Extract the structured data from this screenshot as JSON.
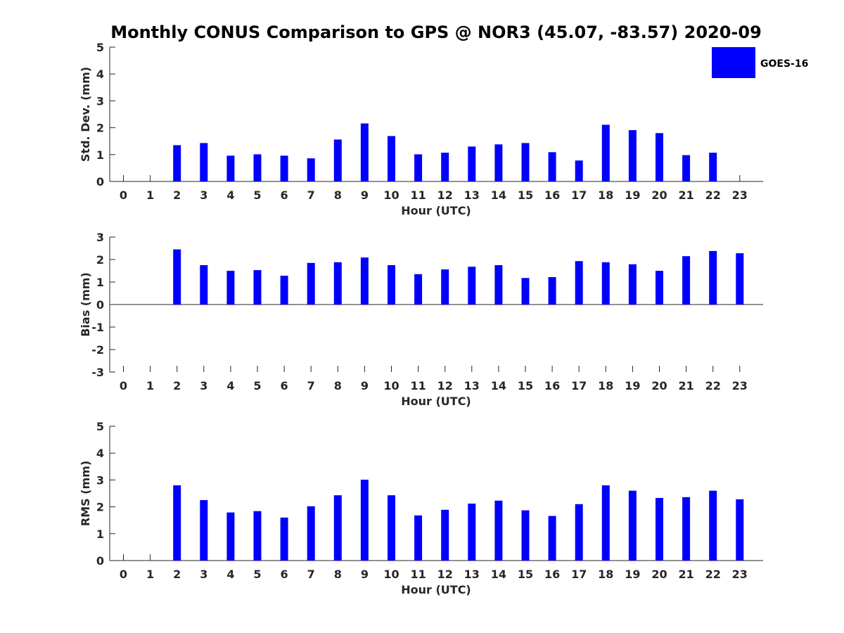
{
  "title": "Monthly CONUS Comparison to GPS @ NOR3 (45.07, -83.57) 2020-09",
  "legend": {
    "label": "GOES-16",
    "color": "#0000ff",
    "placement": "top-right"
  },
  "chart_data": [
    {
      "type": "bar",
      "ylabel": "Std. Dev. (mm)",
      "xlabel": "Hour (UTC)",
      "ylim": [
        0,
        5
      ],
      "yticks": [
        0,
        1,
        2,
        3,
        4,
        5
      ],
      "x": [
        0,
        1,
        2,
        3,
        4,
        5,
        6,
        7,
        8,
        9,
        10,
        11,
        12,
        13,
        14,
        15,
        16,
        17,
        18,
        19,
        20,
        21,
        22,
        23
      ],
      "series": [
        {
          "name": "GOES-16",
          "values": [
            null,
            null,
            1.35,
            1.43,
            0.96,
            1.01,
            0.96,
            0.86,
            1.56,
            2.16,
            1.69,
            1.01,
            1.07,
            1.3,
            1.38,
            1.43,
            1.09,
            0.78,
            2.11,
            1.91,
            1.8,
            0.98,
            1.07,
            null
          ]
        }
      ],
      "grid": false
    },
    {
      "type": "bar",
      "ylabel": "Bias (mm)",
      "xlabel": "Hour (UTC)",
      "ylim": [
        -3,
        3
      ],
      "yticks": [
        -3,
        -2,
        -1,
        0,
        1,
        2,
        3
      ],
      "x": [
        0,
        1,
        2,
        3,
        4,
        5,
        6,
        7,
        8,
        9,
        10,
        11,
        12,
        13,
        14,
        15,
        16,
        17,
        18,
        19,
        20,
        21,
        22,
        23
      ],
      "series": [
        {
          "name": "GOES-16",
          "values": [
            null,
            null,
            2.45,
            1.75,
            1.5,
            1.53,
            1.28,
            1.85,
            1.88,
            2.09,
            1.75,
            1.35,
            1.56,
            1.68,
            1.75,
            1.18,
            1.22,
            1.93,
            1.88,
            1.79,
            1.5,
            2.15,
            2.38,
            2.28
          ]
        }
      ],
      "grid": false
    },
    {
      "type": "bar",
      "ylabel": "RMS (mm)",
      "xlabel": "Hour (UTC)",
      "ylim": [
        0,
        5
      ],
      "yticks": [
        0,
        1,
        2,
        3,
        4,
        5
      ],
      "x": [
        0,
        1,
        2,
        3,
        4,
        5,
        6,
        7,
        8,
        9,
        10,
        11,
        12,
        13,
        14,
        15,
        16,
        17,
        18,
        19,
        20,
        21,
        22,
        23
      ],
      "series": [
        {
          "name": "GOES-16",
          "values": [
            null,
            null,
            2.8,
            2.25,
            1.79,
            1.84,
            1.6,
            2.02,
            2.43,
            3.01,
            2.43,
            1.68,
            1.89,
            2.12,
            2.23,
            1.87,
            1.66,
            2.1,
            2.8,
            2.6,
            2.33,
            2.36,
            2.6,
            2.28
          ]
        }
      ],
      "grid": false
    }
  ]
}
